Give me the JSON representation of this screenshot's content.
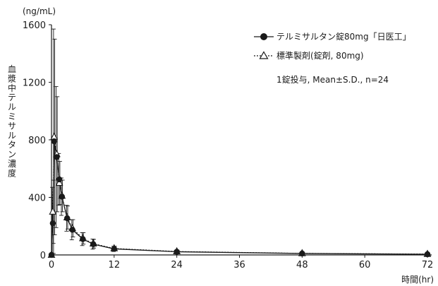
{
  "chart_data": {
    "type": "line",
    "y_unit_label": "(ng/mL)",
    "ylabel": "血漿中テルミサルタン濃度",
    "xlabel": "時間(hr)",
    "xlim": [
      0,
      72
    ],
    "ylim": [
      0,
      1600
    ],
    "x_ticks": [
      0,
      12,
      24,
      36,
      48,
      60,
      72
    ],
    "y_ticks": [
      0,
      400,
      800,
      1200,
      1600
    ],
    "x_tick_labels": [
      "0",
      "12",
      "24",
      "36",
      "48",
      "60",
      "72"
    ],
    "y_tick_labels": [
      "0",
      "400",
      "800",
      "1200",
      "1600"
    ],
    "annotation": "1錠投与, Mean±S.D., n=24",
    "grid": false,
    "legend_position": "top-right",
    "series": [
      {
        "name": "テルミサルタン錠80mg「日医工」",
        "marker": "filled-circle",
        "line_style": "solid",
        "color": "#1a1a1a",
        "points": [
          {
            "x": 0,
            "y": 0,
            "sd": 0
          },
          {
            "x": 0.25,
            "y": 220,
            "sd": 250
          },
          {
            "x": 0.5,
            "y": 790,
            "sd": 780
          },
          {
            "x": 1,
            "y": 680,
            "sd": 490
          },
          {
            "x": 1.5,
            "y": 525,
            "sd": 180
          },
          {
            "x": 2,
            "y": 405,
            "sd": 130
          },
          {
            "x": 3,
            "y": 255,
            "sd": 90
          },
          {
            "x": 4,
            "y": 175,
            "sd": 70
          },
          {
            "x": 6,
            "y": 110,
            "sd": 45
          },
          {
            "x": 8,
            "y": 75,
            "sd": 35
          },
          {
            "x": 12,
            "y": 42,
            "sd": 18
          },
          {
            "x": 24,
            "y": 22,
            "sd": 10
          },
          {
            "x": 48,
            "y": 10,
            "sd": 6
          },
          {
            "x": 72,
            "y": 5,
            "sd": 3
          }
        ]
      },
      {
        "name": "標準製剤(錠剤, 80mg)",
        "marker": "open-triangle",
        "line_style": "dashed",
        "color": "#1a1a1a",
        "points": [
          {
            "x": 0,
            "y": 0,
            "sd": 0
          },
          {
            "x": 0.25,
            "y": 300,
            "sd": 220
          },
          {
            "x": 0.5,
            "y": 820,
            "sd": 680
          },
          {
            "x": 1,
            "y": 700,
            "sd": 400
          },
          {
            "x": 1.5,
            "y": 500,
            "sd": 150
          },
          {
            "x": 2,
            "y": 410,
            "sd": 110
          },
          {
            "x": 3,
            "y": 260,
            "sd": 80
          },
          {
            "x": 4,
            "y": 185,
            "sd": 60
          },
          {
            "x": 6,
            "y": 115,
            "sd": 40
          },
          {
            "x": 8,
            "y": 78,
            "sd": 30
          },
          {
            "x": 12,
            "y": 45,
            "sd": 15
          },
          {
            "x": 24,
            "y": 24,
            "sd": 9
          },
          {
            "x": 48,
            "y": 11,
            "sd": 5
          },
          {
            "x": 72,
            "y": 6,
            "sd": 3
          }
        ]
      }
    ]
  }
}
